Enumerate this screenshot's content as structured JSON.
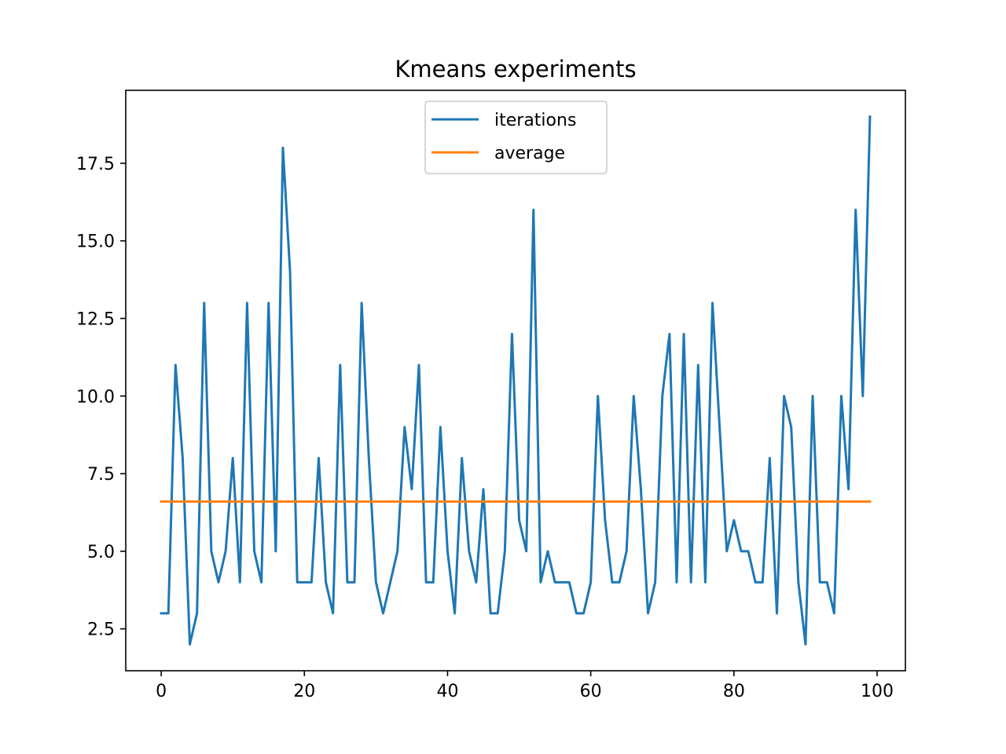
{
  "chart_data": {
    "type": "line",
    "title": "Kmeans experiments",
    "xlabel": "",
    "ylabel": "",
    "xlim": [
      -4.95,
      103.95
    ],
    "ylim": [
      1.15,
      19.85
    ],
    "x_ticks": [
      {
        "value": 0,
        "label": "0"
      },
      {
        "value": 20,
        "label": "20"
      },
      {
        "value": 40,
        "label": "40"
      },
      {
        "value": 60,
        "label": "60"
      },
      {
        "value": 80,
        "label": "80"
      },
      {
        "value": 100,
        "label": "100"
      }
    ],
    "y_ticks": [
      {
        "value": 2.5,
        "label": "2.5"
      },
      {
        "value": 5.0,
        "label": "5.0"
      },
      {
        "value": 7.5,
        "label": "7.5"
      },
      {
        "value": 10.0,
        "label": "10.0"
      },
      {
        "value": 12.5,
        "label": "12.5"
      },
      {
        "value": 15.0,
        "label": "15.0"
      },
      {
        "value": 17.5,
        "label": "17.5"
      }
    ],
    "grid": false,
    "legend_position": "upper center",
    "series": [
      {
        "name": "iterations",
        "color": "#1f77b4",
        "x_start": 0,
        "x_step": 1,
        "values": [
          3,
          3,
          11,
          8,
          2,
          3,
          13,
          5,
          4,
          5,
          8,
          4,
          13,
          5,
          4,
          13,
          5,
          18,
          14,
          4,
          4,
          4,
          8,
          4,
          3,
          11,
          4,
          4,
          13,
          8,
          4,
          3,
          4,
          5,
          9,
          7,
          11,
          4,
          4,
          9,
          5,
          3,
          8,
          5,
          4,
          7,
          3,
          3,
          5,
          12,
          6,
          5,
          16,
          4,
          5,
          4,
          4,
          4,
          3,
          3,
          4,
          10,
          6,
          4,
          4,
          5,
          10,
          7,
          3,
          4,
          10,
          12,
          4,
          12,
          4,
          11,
          4,
          13,
          9,
          5,
          6,
          5,
          5,
          4,
          4,
          8,
          3,
          10,
          9,
          4,
          2,
          10,
          4,
          4,
          3,
          10,
          7,
          16,
          10,
          19
        ]
      },
      {
        "name": "average",
        "color": "#ff7f0e",
        "x": [
          0,
          99
        ],
        "values": [
          6.6,
          6.6
        ]
      }
    ]
  }
}
